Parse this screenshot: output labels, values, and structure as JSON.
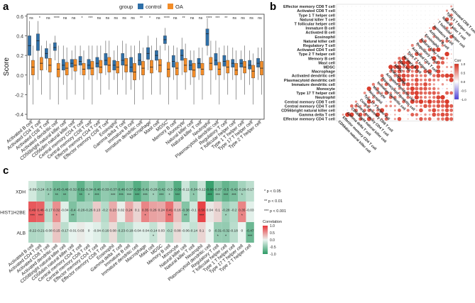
{
  "panels": {
    "a": "a",
    "b": "b",
    "c": "c"
  },
  "chart_data": [
    {
      "type": "box",
      "panel": "a",
      "title": "",
      "ylabel": "Score",
      "xlabel": "",
      "ylim": [
        -0.45,
        0.62
      ],
      "yticks": [
        -0.4,
        -0.2,
        0.0,
        0.2,
        0.4,
        0.6
      ],
      "legend": {
        "title": "group",
        "items": [
          "control",
          "OA"
        ],
        "placement": "top-center"
      },
      "colors": {
        "control": "#2E6FA8",
        "OA": "#F28C28"
      },
      "categories": [
        "Activated B cell",
        "Activated CD4 T cell",
        "Activated CD8 T cell",
        "Activated dendritic cell",
        "CD56bright natural killer cell",
        "CD56dim natural killer cell",
        "Central memory CD4 T cell",
        "Central memory CD8 T cell",
        "Effector memory CD4 T cell",
        "Effector memory CD8 T cell",
        "Eosinophil",
        "Gamma delta T cell",
        "Immature B cell",
        "Immature dendritic cell",
        "Macrophage",
        "Mast cell",
        "MDSC",
        "Memory B cell",
        "Monocyte",
        "Natural killer cell",
        "Natural killer T cell",
        "Neutrophil",
        "Plasmacytoid dendritic cell",
        "Regulatory T cell",
        "T follicular helper cell",
        "Type 1 T helper cell",
        "Type 17 T helper cell",
        "Type 2 T helper cell"
      ],
      "significance": [
        "ns",
        "*",
        "ns",
        "****",
        "ns",
        "ns",
        "*",
        "***",
        "ns",
        "ns",
        "ns",
        "ns",
        "ns",
        "**",
        "*",
        "ns",
        "****",
        "ns",
        "**",
        "ns",
        "ns",
        "****",
        "***",
        "**",
        "ns",
        "ns",
        "ns",
        "ns"
      ],
      "series": [
        {
          "name": "control",
          "median": [
            0.3,
            0.35,
            0.22,
            0.28,
            0.1,
            0.12,
            0.14,
            0.1,
            0.12,
            0.15,
            0.1,
            0.15,
            0.08,
            0.15,
            0.22,
            0.2,
            0.36,
            0.14,
            0.2,
            0.1,
            0.12,
            0.42,
            0.15,
            0.14,
            0.12,
            0.12,
            0.1,
            0.12
          ],
          "q1": [
            0.2,
            0.25,
            0.17,
            0.25,
            0.05,
            0.08,
            0.1,
            0.06,
            0.08,
            0.1,
            0.05,
            0.1,
            0.03,
            0.1,
            0.16,
            0.15,
            0.32,
            0.08,
            0.15,
            0.05,
            0.07,
            0.3,
            0.1,
            0.09,
            0.08,
            0.08,
            0.06,
            0.08
          ],
          "q3": [
            0.4,
            0.42,
            0.27,
            0.33,
            0.16,
            0.16,
            0.19,
            0.16,
            0.18,
            0.22,
            0.15,
            0.22,
            0.18,
            0.22,
            0.28,
            0.25,
            0.4,
            0.2,
            0.26,
            0.15,
            0.17,
            0.47,
            0.22,
            0.2,
            0.16,
            0.16,
            0.15,
            0.17
          ],
          "min": [
            -0.1,
            -0.05,
            0.05,
            0.15,
            -0.1,
            -0.05,
            0.0,
            -0.05,
            -0.05,
            0.0,
            -0.05,
            -0.05,
            -0.15,
            -0.05,
            0.05,
            0.05,
            0.25,
            -0.05,
            0.0,
            -0.1,
            -0.05,
            0.2,
            -0.05,
            -0.05,
            -0.05,
            -0.05,
            -0.1,
            -0.05
          ],
          "max": [
            0.55,
            0.55,
            0.35,
            0.4,
            0.3,
            0.25,
            0.3,
            0.3,
            0.3,
            0.35,
            0.25,
            0.35,
            0.3,
            0.35,
            0.4,
            0.38,
            0.48,
            0.3,
            0.38,
            0.25,
            0.28,
            0.58,
            0.35,
            0.3,
            0.28,
            0.25,
            0.25,
            0.28
          ]
        },
        {
          "name": "OA",
          "median": [
            0.08,
            0.12,
            0.1,
            0.06,
            0.07,
            0.1,
            0.06,
            0.07,
            0.08,
            0.1,
            0.08,
            0.1,
            0.03,
            0.07,
            0.08,
            0.1,
            0.06,
            0.07,
            0.1,
            0.05,
            0.06,
            0.12,
            0.06,
            0.08,
            0.05,
            0.08,
            0.04,
            0.07
          ],
          "q1": [
            0.0,
            0.05,
            0.03,
            -0.02,
            0.0,
            0.04,
            0.0,
            0.0,
            0.02,
            0.03,
            0.02,
            0.03,
            -0.05,
            0.0,
            0.02,
            0.03,
            -0.02,
            0.0,
            0.03,
            -0.02,
            0.0,
            0.05,
            0.0,
            0.02,
            0.0,
            0.02,
            -0.03,
            0.0
          ],
          "q3": [
            0.15,
            0.18,
            0.17,
            0.12,
            0.13,
            0.16,
            0.12,
            0.14,
            0.15,
            0.18,
            0.14,
            0.17,
            0.12,
            0.14,
            0.15,
            0.16,
            0.13,
            0.13,
            0.17,
            0.12,
            0.12,
            0.18,
            0.13,
            0.15,
            0.12,
            0.14,
            0.1,
            0.14
          ],
          "min": [
            -0.3,
            -0.2,
            -0.25,
            -0.3,
            -0.25,
            -0.2,
            -0.25,
            -0.3,
            -0.2,
            -0.15,
            -0.2,
            -0.2,
            -0.3,
            -0.25,
            -0.2,
            -0.2,
            -0.3,
            -0.25,
            -0.15,
            -0.3,
            -0.25,
            -0.2,
            -0.3,
            -0.2,
            -0.25,
            -0.2,
            -0.3,
            -0.2
          ],
          "max": [
            0.3,
            0.3,
            0.32,
            0.3,
            0.28,
            0.3,
            0.25,
            0.3,
            0.3,
            0.35,
            0.3,
            0.32,
            0.3,
            0.28,
            0.3,
            0.3,
            0.3,
            0.28,
            0.32,
            0.25,
            0.28,
            0.35,
            0.28,
            0.3,
            0.25,
            0.3,
            0.22,
            0.28
          ]
        }
      ]
    },
    {
      "type": "heatmap",
      "panel": "b",
      "title": "",
      "labels": [
        "Effector memory CD8 T cell",
        "Activated CD8 T cell",
        "Type 1 T helper cell",
        "Natural killer T cell",
        "T follicular helper cell",
        "Immature B cell",
        "Activated B cell",
        "Eosinophil",
        "Natural killer cell",
        "Regulatory T cell",
        "Activated CD4 T cell",
        "Type 2 T helper cell",
        "Memory B cell",
        "Mast cell",
        "MDSC",
        "Macrophage",
        "Activated dendritic cell",
        "Plasmacytoid dendritic cell",
        "Immature dendritic cell",
        "Monocyte",
        "Type 17 T helper cell",
        "Neutrophil",
        "Central memory CD8 T cell",
        "Central memory CD4 T cell",
        "CD56bright natural killer cell",
        "Gamma delta T cell",
        "Effector memory CD4 T cell"
      ],
      "x_labels": [
        "CD56dim natural killer cell",
        "Effector memory CD4 T cell",
        "Gamma delta T cell",
        "CD56bright natural killer cell",
        "Central memory CD4 T cell",
        "Central memory CD8 T cell",
        "Type 17 T helper cell",
        "Neutrophil",
        "Monocyte",
        "Immature dendritic cell",
        "Plasmacytoid dendritic cell",
        "Activated dendritic cell",
        "Macrophage",
        "MDSC",
        "Mast cell",
        "Memory B cell",
        "Type 2 T helper cell",
        "Activated CD4 T cell",
        "Regulatory T cell",
        "Natural killer cell",
        "Eosinophil",
        "Activated B cell",
        "Immature B cell",
        "T follicular helper cell",
        "Natural killer T cell",
        "Type 1 T helper cell",
        "Activated CD8 T cell"
      ],
      "colorbar": {
        "title": "Corr",
        "ticks": [
          "1.0",
          "0.5",
          "0.0",
          "-0.5",
          "-1.0"
        ]
      }
    },
    {
      "type": "heatmap",
      "panel": "c",
      "title": "",
      "rows": [
        "XDH",
        "HIST1H2BE",
        "ALB"
      ],
      "columns": [
        "Activated B cell",
        "Activated CD4 T cell",
        "Activated CD8 T cell",
        "Activated dendritic cell",
        "CD56bright natural killer cell",
        "CD56dim natural killer cell",
        "Central memory CD4 T cell",
        "Central memory CD8 T cell",
        "Effector memory CD4 T cell",
        "Effector memory CD8 T cell",
        "Eosinophil",
        "Gamma delta T cell",
        "Immature B cell",
        "Immature dendritic cell",
        "Macrophage",
        "Mast cell",
        "MDSC",
        "Memory B cell",
        "Monocyte",
        "Natural killer cell",
        "Natural killer T cell",
        "Neutrophil",
        "Plasmacytoid dendritic cell",
        "Regulatory T cell",
        "T follicular helper cell",
        "Type 1 T helper cell",
        "Type 17 T helper cell",
        "Type 2 T helper cell"
      ],
      "values": [
        [
          -0.09,
          -0.24,
          -0.3,
          -0.45,
          -0.46,
          -0.32,
          -0.52,
          -0.34,
          -0.46,
          -0.33,
          -0.37,
          -0.46,
          -0.37,
          -0.56,
          -0.41,
          -0.28,
          -0.42,
          -0.3,
          -0.56,
          -0.11,
          -0.34,
          -0.12,
          -0.66,
          -0.37,
          -0.5,
          -0.42,
          -0.26,
          -0.17
        ],
        [
          0.49,
          0.46,
          -0.17,
          0.32,
          -0.04,
          -0.4,
          -0.26,
          -0.26,
          0.13,
          -0.2,
          0.23,
          0.02,
          0.24,
          0.1,
          0.35,
          0.26,
          0.24,
          0.41,
          0.16,
          -0.38,
          -0.1,
          0.56,
          0.04,
          0.1,
          -0.28,
          -0.2,
          0.35,
          -0.03
        ],
        [
          -0.22,
          -0.21,
          -0.08,
          0.15,
          -0.17,
          -0.01,
          0.03,
          0.0,
          -0.04,
          -0.16,
          0.08,
          -0.23,
          -0.18,
          -0.04,
          -0.04,
          -0.14,
          0.03,
          -0.2,
          0.08,
          -0.06,
          -0.14,
          0.1,
          0.0,
          -0.31,
          -0.32,
          -0.18,
          0.0,
          -0.47
        ]
      ],
      "stars": [
        [
          "",
          "",
          "*",
          "**",
          "**",
          "",
          "**",
          "*",
          "***",
          "",
          "***",
          "***",
          "***",
          "***",
          "***",
          "*",
          "***",
          "*",
          "***",
          "",
          "*",
          "",
          "***",
          "***",
          "***",
          "***",
          "*",
          ""
        ],
        [
          "***",
          "***",
          "",
          "*",
          "",
          "**",
          "",
          "",
          "",
          "",
          "",
          "",
          "",
          "",
          "*",
          "",
          "",
          "**",
          "",
          "**",
          "",
          "***",
          "",
          "",
          "*",
          "",
          "*",
          ""
        ],
        [
          "",
          "",
          "",
          "",
          "",
          "",
          "",
          "",
          "",
          "",
          "",
          "",
          "",
          "",
          "",
          "*",
          "",
          "",
          "",
          "",
          "",
          "",
          "",
          "*",
          "*",
          "",
          "",
          "***"
        ]
      ],
      "legend_sig": [
        "*   p < 0.05",
        "**  p < 0.01",
        "*** p < 0.001"
      ],
      "colorbar": {
        "title": "Correlation",
        "ticks": [
          "1.0",
          "0.5",
          "0.0",
          "-0.5",
          "-1.0"
        ]
      }
    }
  ]
}
